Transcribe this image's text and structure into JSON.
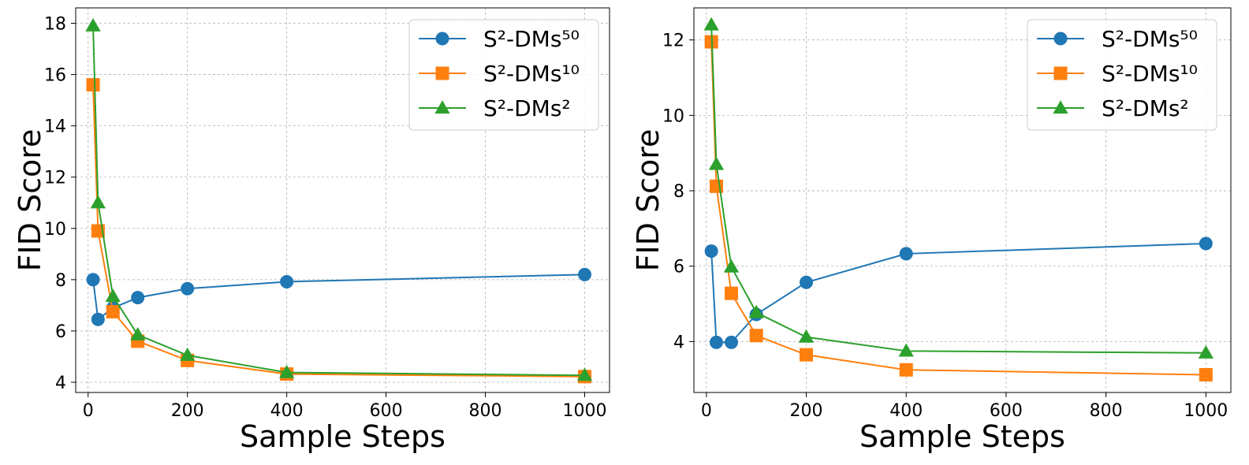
{
  "chart_data": [
    {
      "type": "line",
      "xlabel": "Sample Steps",
      "ylabel": "FID Score",
      "xlim": [
        -25,
        1050
      ],
      "ylim": [
        3.6,
        18.6
      ],
      "xticks": [
        0,
        200,
        400,
        600,
        800,
        1000
      ],
      "yticks": [
        4,
        6,
        8,
        10,
        12,
        14,
        16,
        18
      ],
      "grid": true,
      "legend_position": "top-right",
      "x": [
        10,
        20,
        50,
        100,
        200,
        400,
        1000
      ],
      "series": [
        {
          "name": "S²-DMs⁵⁰",
          "color": "#1f77b4",
          "marker": "circle",
          "values": [
            8.0,
            6.45,
            6.9,
            7.3,
            7.65,
            7.92,
            8.2
          ]
        },
        {
          "name": "S²-DMs¹⁰",
          "color": "#ff7f0e",
          "marker": "square",
          "values": [
            15.6,
            9.9,
            6.75,
            5.6,
            4.85,
            4.32,
            4.22
          ]
        },
        {
          "name": "S²-DMs²",
          "color": "#2ca02c",
          "marker": "triangle",
          "values": [
            17.9,
            11.0,
            7.35,
            5.85,
            5.05,
            4.38,
            4.27
          ]
        }
      ]
    },
    {
      "type": "line",
      "xlabel": "Sample Steps",
      "ylabel": "FID Score",
      "xlim": [
        -25,
        1050
      ],
      "ylim": [
        2.65,
        12.85
      ],
      "xticks": [
        0,
        200,
        400,
        600,
        800,
        1000
      ],
      "yticks": [
        4,
        6,
        8,
        10,
        12
      ],
      "grid": true,
      "legend_position": "top-right",
      "x": [
        10,
        20,
        50,
        100,
        200,
        400,
        1000
      ],
      "series": [
        {
          "name": "S²-DMs⁵⁰",
          "color": "#1f77b4",
          "marker": "circle",
          "values": [
            6.4,
            3.98,
            3.98,
            4.72,
            5.57,
            6.33,
            6.6
          ]
        },
        {
          "name": "S²-DMs¹⁰",
          "color": "#ff7f0e",
          "marker": "square",
          "values": [
            11.95,
            8.12,
            5.28,
            4.16,
            3.65,
            3.25,
            3.12
          ]
        },
        {
          "name": "S²-DMs²",
          "color": "#2ca02c",
          "marker": "triangle",
          "values": [
            12.4,
            8.7,
            5.98,
            4.77,
            4.12,
            3.75,
            3.7
          ]
        }
      ]
    }
  ]
}
